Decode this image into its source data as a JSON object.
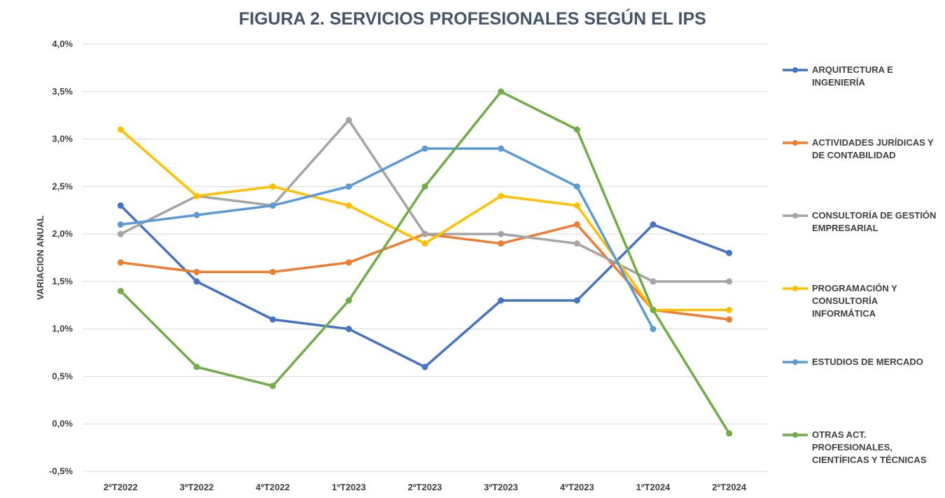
{
  "chart_data": {
    "type": "line",
    "title": "FIGURA 2. SERVICIOS PROFESIONALES SEGÚN EL IPS",
    "xlabel": "",
    "ylabel": "VARIACION ANUAL",
    "ylim": [
      -0.5,
      4.0
    ],
    "yticks": [
      -0.5,
      0.0,
      0.5,
      1.0,
      1.5,
      2.0,
      2.5,
      3.0,
      3.5,
      4.0
    ],
    "ytick_labels": [
      "-0,5%",
      "0,0%",
      "0,5%",
      "1,0%",
      "1,5%",
      "2,0%",
      "2,5%",
      "3,0%",
      "3,5%",
      "4,0%"
    ],
    "categories": [
      "2ºT2022",
      "3ºT2022",
      "4ºT2022",
      "1ºT2023",
      "2ºT2023",
      "3ºT2023",
      "4ºT2023",
      "1ºT2024",
      "2ºT2024"
    ],
    "grid": true,
    "legend_position": "right",
    "series": [
      {
        "name": "ARQUITECTURA E INGENIERÍA",
        "legend_lines": [
          "ARQUITECTURA E",
          "INGENIERÍA"
        ],
        "color": "#4472c4",
        "values": [
          2.3,
          1.5,
          1.1,
          1.0,
          0.6,
          1.3,
          1.3,
          2.1,
          1.8
        ]
      },
      {
        "name": "ACTIVIDADES JURÍDICAS Y DE CONTABILIDAD",
        "legend_lines": [
          "ACTIVIDADES JURÍDICAS Y",
          "DE CONTABILIDAD"
        ],
        "color": "#ed7d31",
        "values": [
          1.7,
          1.6,
          1.6,
          1.7,
          2.0,
          1.9,
          2.1,
          1.2,
          1.1
        ]
      },
      {
        "name": "CONSULTORÍA DE GESTIÓN EMPRESARIAL",
        "legend_lines": [
          "CONSULTORÍA DE GESTIÓN",
          "EMPRESARIAL"
        ],
        "color": "#a5a5a5",
        "values": [
          2.0,
          2.4,
          2.3,
          3.2,
          2.0,
          2.0,
          1.9,
          1.5,
          1.5
        ]
      },
      {
        "name": "PROGRAMACIÓN Y CONSULTORÍA INFORMÁTICA",
        "legend_lines": [
          "PROGRAMACIÓN Y",
          "CONSULTORÍA",
          "INFORMÁTICA"
        ],
        "color": "#ffc000",
        "values": [
          3.1,
          2.4,
          2.5,
          2.3,
          1.9,
          2.4,
          2.3,
          1.2,
          1.2
        ]
      },
      {
        "name": "ESTUDIOS DE MERCADO",
        "legend_lines": [
          "ESTUDIOS DE MERCADO"
        ],
        "color": "#5b9bd5",
        "values": [
          2.1,
          2.2,
          2.3,
          2.5,
          2.9,
          2.9,
          2.5,
          1.0,
          null
        ]
      },
      {
        "name": "OTRAS ACT. PROFESIONALES, CIENTÍFICAS Y TÉCNICAS",
        "legend_lines": [
          "OTRAS ACT.",
          "PROFESIONALES,",
          "CIENTÍFICAS Y TÉCNICAS"
        ],
        "color": "#70ad47",
        "values": [
          1.4,
          0.6,
          0.4,
          1.3,
          2.5,
          3.5,
          3.1,
          1.2,
          -0.1
        ]
      }
    ]
  }
}
